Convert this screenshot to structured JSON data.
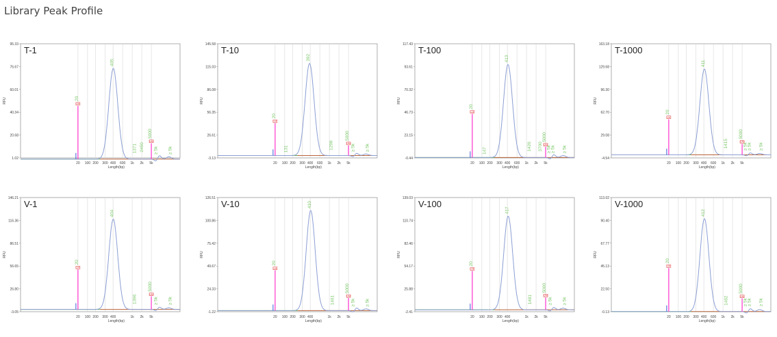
{
  "page_title": "Library Peak Profile",
  "colors": {
    "trace": "#8c9fd4",
    "marker": "#ff33cc",
    "label": "#7cc86a",
    "baseline_left": "#62b04e",
    "baseline_right": "#b76238",
    "grid": "#d7d7d7",
    "lm_box": "#e03a3a"
  },
  "chart_data": [
    {
      "type": "line",
      "name": "T-1",
      "ylabel": "RFU",
      "xlabel": "Length(bp)",
      "ytick_labels": [
        "95.33",
        "76.67",
        "60.01",
        "40.34",
        "20.68",
        "1.02"
      ],
      "xtick_labels": [
        "20",
        "100",
        "200",
        "300",
        "400",
        "600",
        "1k",
        "2k",
        "5k"
      ],
      "x_tick_text": [
        "20",
        "100",
        "200",
        "300",
        "400",
        "600",
        "1k",
        "2k",
        "5k"
      ],
      "peaks": [
        {
          "bp": 20,
          "rfu": 44,
          "label": "20",
          "marker": true,
          "lm": "LM"
        },
        {
          "bp": 405,
          "rfu": 75,
          "label": "405"
        },
        {
          "bp": 1371,
          "rfu": 3,
          "label": "1371"
        },
        {
          "bp": 2450,
          "rfu": 4,
          "label": "2450"
        },
        {
          "bp": 5000,
          "rfu": 13,
          "label": "5000",
          "marker": true,
          "lm": "UM"
        },
        {
          "bp": 7000,
          "rfu": 2,
          "label": "≥ 5k"
        },
        {
          "bp": 12000,
          "rfu": 2,
          "label": "≥ 5k"
        }
      ]
    },
    {
      "type": "line",
      "name": "T-10",
      "ylabel": "RFU",
      "xlabel": "Length(bp)",
      "ytick_labels": [
        "145.58",
        "115.03",
        "86.08",
        "56.35",
        "26.61",
        "-3.13"
      ],
      "xtick_labels": [
        "20",
        "100",
        "200",
        "300",
        "400",
        "600",
        "1k",
        "2k",
        "5k"
      ],
      "x_tick_text": [
        "20",
        "100",
        "200",
        "300",
        "400",
        "600",
        "1k",
        "2k",
        "5k"
      ],
      "peaks": [
        {
          "bp": 20,
          "rfu": 42,
          "label": "20",
          "marker": true,
          "lm": "LM"
        },
        {
          "bp": 131,
          "rfu": 1,
          "label": "131"
        },
        {
          "bp": 392,
          "rfu": 120,
          "label": "392"
        },
        {
          "bp": 1298,
          "rfu": 4,
          "label": "1298"
        },
        {
          "bp": 5000,
          "rfu": 13,
          "label": "5000",
          "marker": true,
          "lm": "UM"
        },
        {
          "bp": 7000,
          "rfu": 2,
          "label": "≥ 5k"
        },
        {
          "bp": 12000,
          "rfu": 2,
          "label": "≥ 5k"
        }
      ]
    },
    {
      "type": "line",
      "name": "T-100",
      "ylabel": "RFU",
      "xlabel": "Length(bp)",
      "ytick_labels": [
        "117.43",
        "93.61",
        "70.32",
        "46.73",
        "23.15",
        "-0.44"
      ],
      "xtick_labels": [
        "20",
        "100",
        "200",
        "300",
        "400",
        "600",
        "1k",
        "2k",
        "5k"
      ],
      "x_tick_text": [
        "20",
        "100",
        "200",
        "300",
        "400",
        "600",
        "1k",
        "2k",
        "5k"
      ],
      "peaks": [
        {
          "bp": 20,
          "rfu": 45,
          "label": "20",
          "marker": true,
          "lm": "LM"
        },
        {
          "bp": 147,
          "rfu": 1,
          "label": "147"
        },
        {
          "bp": 413,
          "rfu": 96,
          "label": "413"
        },
        {
          "bp": 1426,
          "rfu": 4,
          "label": "1426"
        },
        {
          "bp": 3700,
          "rfu": 4,
          "label": "3700"
        },
        {
          "bp": 5000,
          "rfu": 11,
          "label": "5000",
          "marker": true,
          "lm": "UM"
        },
        {
          "bp": 6500,
          "rfu": 2,
          "label": "≥ 5k"
        },
        {
          "bp": 8000,
          "rfu": 2,
          "label": "≥ 5k"
        },
        {
          "bp": 12000,
          "rfu": 2,
          "label": "≥ 5k"
        }
      ]
    },
    {
      "type": "line",
      "name": "T-1000",
      "ylabel": "RFU",
      "xlabel": "Length(bp)",
      "ytick_labels": [
        "163.18",
        "129.68",
        "96.30",
        "62.70",
        "29.08",
        "-4.54"
      ],
      "xtick_labels": [
        "20",
        "100",
        "200",
        "300",
        "400",
        "600",
        "1k",
        "2k",
        "5k"
      ],
      "x_tick_text": [
        "20",
        "100",
        "200",
        "300",
        "400",
        "600",
        "1k",
        "2k",
        "5k"
      ],
      "peaks": [
        {
          "bp": 20,
          "rfu": 52,
          "label": "20",
          "marker": true,
          "lm": "LM"
        },
        {
          "bp": 411,
          "rfu": 126,
          "label": "411"
        },
        {
          "bp": 1415,
          "rfu": 6,
          "label": "1415"
        },
        {
          "bp": 5000,
          "rfu": 16,
          "label": "5000",
          "marker": true,
          "lm": "UM"
        },
        {
          "bp": 6500,
          "rfu": 3,
          "label": "≥ 5k"
        },
        {
          "bp": 8000,
          "rfu": 3,
          "label": "≥ 5k"
        },
        {
          "bp": 12000,
          "rfu": 3,
          "label": "≥ 5k"
        }
      ]
    },
    {
      "type": "line",
      "name": "V-1",
      "ylabel": "RFU",
      "xlabel": "Length(bp)",
      "ytick_labels": [
        "146.21",
        "116.36",
        "86.51",
        "56.65",
        "26.80",
        "-3.05"
      ],
      "xtick_labels": [
        "20",
        "100",
        "200",
        "300",
        "400",
        "1k",
        "2k",
        "5k"
      ],
      "x_tick_text": [
        "20",
        "100",
        "200",
        "300",
        "400",
        "1k",
        "2k",
        "5k"
      ],
      "peaks": [
        {
          "bp": 20,
          "rfu": 52,
          "label": "20",
          "marker": true,
          "lm": "LM"
        },
        {
          "bp": 404,
          "rfu": 118,
          "label": "404"
        },
        {
          "bp": 1396,
          "rfu": 4,
          "label": "1396"
        },
        {
          "bp": 5000,
          "rfu": 17,
          "label": "5000",
          "marker": true,
          "lm": "UM"
        },
        {
          "bp": 7000,
          "rfu": 3,
          "label": "≥ 5k"
        },
        {
          "bp": 12000,
          "rfu": 3,
          "label": "≥ 5k"
        }
      ]
    },
    {
      "type": "line",
      "name": "V-10",
      "ylabel": "RFU",
      "xlabel": "Length(bp)",
      "ytick_labels": [
        "126.51",
        "100.86",
        "75.42",
        "49.67",
        "24.33",
        "-1.22"
      ],
      "xtick_labels": [
        "20",
        "100",
        "200",
        "300",
        "400",
        "1k",
        "2k",
        "5k"
      ],
      "x_tick_text": [
        "20",
        "100",
        "200",
        "300",
        "400",
        "1k",
        "2k",
        "5k"
      ],
      "peaks": [
        {
          "bp": 20,
          "rfu": 45,
          "label": "20",
          "marker": true,
          "lm": "LM"
        },
        {
          "bp": 410,
          "rfu": 112,
          "label": "410"
        },
        {
          "bp": 1461,
          "rfu": 4,
          "label": "1461"
        },
        {
          "bp": 5000,
          "rfu": 14,
          "label": "5000",
          "marker": true,
          "lm": "UM"
        },
        {
          "bp": 7000,
          "rfu": 2,
          "label": "≥ 5k"
        },
        {
          "bp": 12000,
          "rfu": 2,
          "label": "≥ 5k"
        }
      ]
    },
    {
      "type": "line",
      "name": "V-100",
      "ylabel": "RFU",
      "xlabel": "Length(bp)",
      "ytick_labels": [
        "139.03",
        "110.74",
        "82.46",
        "54.17",
        "25.88",
        "-2.41"
      ],
      "xtick_labels": [
        "20",
        "100",
        "200",
        "300",
        "400",
        "1k",
        "2k",
        "5k"
      ],
      "x_tick_text": [
        "20",
        "100",
        "200",
        "300",
        "400",
        "1k",
        "2k",
        "5k"
      ],
      "peaks": [
        {
          "bp": 20,
          "rfu": 48,
          "label": "20",
          "marker": true,
          "lm": "LM"
        },
        {
          "bp": 417,
          "rfu": 116,
          "label": "417"
        },
        {
          "bp": 1481,
          "rfu": 4,
          "label": "1481"
        },
        {
          "bp": 5000,
          "rfu": 15,
          "label": "5000",
          "marker": true,
          "lm": "UM"
        },
        {
          "bp": 7000,
          "rfu": 3,
          "label": "≥ 5k"
        },
        {
          "bp": 12000,
          "rfu": 3,
          "label": "≥ 5k"
        }
      ]
    },
    {
      "type": "line",
      "name": "V-1000",
      "ylabel": "RFU",
      "xlabel": "Length(bp)",
      "ytick_labels": [
        "113.02",
        "90.40",
        "67.77",
        "45.13",
        "22.50",
        "-0.13"
      ],
      "xtick_labels": [
        "20",
        "100",
        "200",
        "300",
        "400",
        "600",
        "1k",
        "2k",
        "5k"
      ],
      "x_tick_text": [
        "20",
        "100",
        "200",
        "300",
        "400",
        "600",
        "1k",
        "2k",
        "5k"
      ],
      "peaks": [
        {
          "bp": 20,
          "rfu": 43,
          "label": "20",
          "marker": true,
          "lm": "LM"
        },
        {
          "bp": 412,
          "rfu": 92,
          "label": "412"
        },
        {
          "bp": 1462,
          "rfu": 4,
          "label": "1462"
        },
        {
          "bp": 5000,
          "rfu": 13,
          "label": "5000",
          "marker": true,
          "lm": "UM"
        },
        {
          "bp": 6500,
          "rfu": 3,
          "label": "≥ 5k"
        },
        {
          "bp": 8000,
          "rfu": 3,
          "label": "≥ 5k"
        },
        {
          "bp": 12000,
          "rfu": 3,
          "label": "≥ 5k"
        }
      ]
    }
  ]
}
